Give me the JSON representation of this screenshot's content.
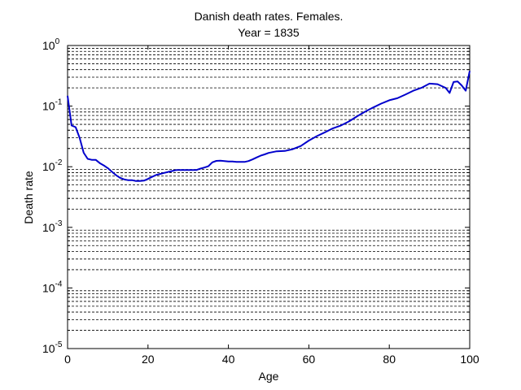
{
  "chart_data": {
    "type": "line",
    "title": "Danish death rates. Females.",
    "subtitle": "Year = 1835",
    "xlabel": "Age",
    "ylabel": "Death rate",
    "xlim": [
      0,
      100
    ],
    "ylim": [
      1e-05,
      1
    ],
    "yscale": "log",
    "grid": "y minor dashed",
    "x_ticks": [
      "0",
      "20",
      "40",
      "60",
      "80",
      "100"
    ],
    "y_ticks": [
      {
        "base": "10",
        "exp": "-5"
      },
      {
        "base": "10",
        "exp": "-4"
      },
      {
        "base": "10",
        "exp": "-3"
      },
      {
        "base": "10",
        "exp": "-2"
      },
      {
        "base": "10",
        "exp": "-1"
      },
      {
        "base": "10",
        "exp": "0"
      }
    ],
    "line_color": "#0000cc",
    "series": [
      {
        "x": [
          0,
          1,
          2,
          3,
          4,
          5,
          6,
          7,
          8,
          9,
          10,
          11,
          12,
          13,
          14,
          15,
          16,
          17,
          18,
          19,
          20,
          21,
          22,
          23,
          24,
          25,
          26,
          27,
          28,
          29,
          30,
          31,
          32,
          33,
          34,
          35,
          36,
          37,
          38,
          39,
          40,
          41,
          42,
          43,
          44,
          45,
          46,
          47,
          48,
          49,
          50,
          52,
          54,
          56,
          58,
          60,
          62,
          64,
          66,
          68,
          70,
          72,
          74,
          76,
          78,
          80,
          82,
          84,
          86,
          88,
          90,
          92,
          94,
          95,
          96,
          97,
          98,
          99,
          100
        ],
        "values": [
          0.148,
          0.048,
          0.045,
          0.03,
          0.017,
          0.0135,
          0.013,
          0.013,
          0.0115,
          0.0105,
          0.0095,
          0.0083,
          0.0073,
          0.0066,
          0.0062,
          0.006,
          0.006,
          0.0058,
          0.0058,
          0.0059,
          0.0063,
          0.0068,
          0.0073,
          0.0076,
          0.0079,
          0.0082,
          0.0085,
          0.0088,
          0.0088,
          0.0088,
          0.0088,
          0.0088,
          0.0088,
          0.0093,
          0.0097,
          0.0102,
          0.0118,
          0.0125,
          0.0126,
          0.0124,
          0.0122,
          0.0122,
          0.012,
          0.012,
          0.012,
          0.0124,
          0.0132,
          0.0142,
          0.0152,
          0.016,
          0.0169,
          0.018,
          0.0182,
          0.0195,
          0.022,
          0.027,
          0.032,
          0.037,
          0.043,
          0.048,
          0.056,
          0.068,
          0.081,
          0.095,
          0.11,
          0.125,
          0.135,
          0.155,
          0.18,
          0.2,
          0.235,
          0.23,
          0.2,
          0.165,
          0.25,
          0.255,
          0.22,
          0.18,
          0.38
        ]
      }
    ]
  }
}
